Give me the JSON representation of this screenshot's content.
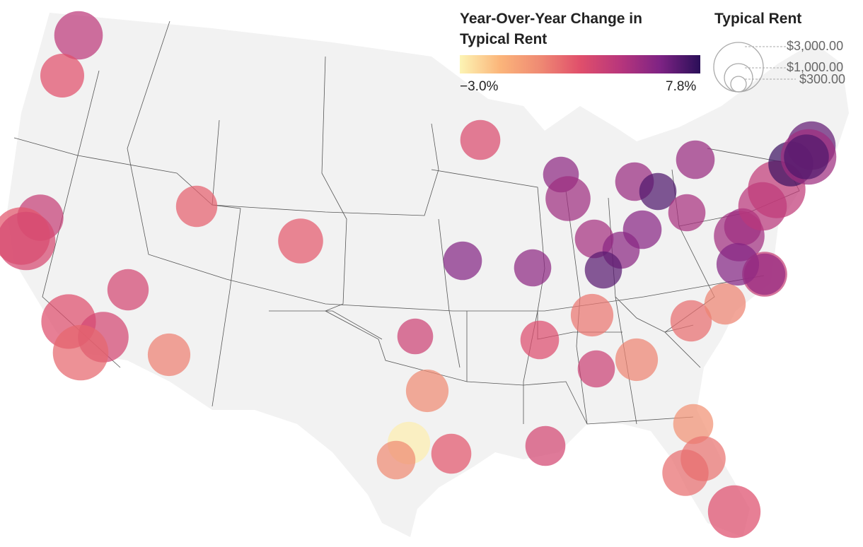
{
  "legend": {
    "color_title_line1": "Year-Over-Year Change in",
    "color_title_line2": "Typical Rent",
    "color_min_label": "−3.0%",
    "color_max_label": "7.8%",
    "color_min": -3.0,
    "color_max": 7.8,
    "color_stops": [
      "#fcf4b4",
      "#fbb57a",
      "#ef8a73",
      "#e04f6b",
      "#b8367c",
      "#7e2384",
      "#2a0f58"
    ],
    "size_title": "Typical Rent",
    "size_labels": [
      "$3,000.00",
      "$1,000.00",
      "$300.00"
    ],
    "size_values": [
      3000,
      1000,
      300
    ]
  },
  "colors": {
    "land": "#f2f2f2",
    "border": "#555555",
    "bubble_opacity": 0.72
  },
  "bubbles": [
    {
      "name": "seattle",
      "change": 4.0,
      "rent": 2200
    },
    {
      "name": "portland",
      "change": 2.4,
      "rent": 1800
    },
    {
      "name": "sacramento",
      "change": 3.6,
      "rent": 2000
    },
    {
      "name": "san-francisco",
      "change": 2.2,
      "rent": 3100
    },
    {
      "name": "san-jose",
      "change": 2.9,
      "rent": 3200
    },
    {
      "name": "fresno",
      "change": 3.0,
      "rent": 1600
    },
    {
      "name": "los-angeles",
      "change": 2.5,
      "rent": 2800
    },
    {
      "name": "riverside",
      "change": 3.0,
      "rent": 2400
    },
    {
      "name": "san-diego",
      "change": 1.7,
      "rent": 2900
    },
    {
      "name": "phoenix",
      "change": 0.9,
      "rent": 1700
    },
    {
      "name": "salt-lake-city",
      "change": 1.9,
      "rent": 1600
    },
    {
      "name": "denver",
      "change": 2.1,
      "rent": 1900
    },
    {
      "name": "minneapolis",
      "change": 2.7,
      "rent": 1500
    },
    {
      "name": "kansas-city",
      "change": 5.8,
      "rent": 1400
    },
    {
      "name": "oklahoma-city",
      "change": 3.3,
      "rent": 1200
    },
    {
      "name": "dallas",
      "change": 0.6,
      "rent": 1700
    },
    {
      "name": "austin",
      "change": -2.8,
      "rent": 1700
    },
    {
      "name": "san-antonio",
      "change": 0.6,
      "rent": 1400
    },
    {
      "name": "houston",
      "change": 2.2,
      "rent": 1500
    },
    {
      "name": "new-orleans",
      "change": 3.0,
      "rent": 1500
    },
    {
      "name": "memphis",
      "change": 2.6,
      "rent": 1400
    },
    {
      "name": "st-louis",
      "change": 5.5,
      "rent": 1300
    },
    {
      "name": "nashville",
      "change": 1.2,
      "rent": 1700
    },
    {
      "name": "birmingham",
      "change": 3.4,
      "rent": 1300
    },
    {
      "name": "atlanta",
      "change": 0.8,
      "rent": 1700
    },
    {
      "name": "milwaukee",
      "change": 5.5,
      "rent": 1200
    },
    {
      "name": "chicago",
      "change": 5.0,
      "rent": 1900
    },
    {
      "name": "indianapolis",
      "change": 4.8,
      "rent": 1400
    },
    {
      "name": "louisville",
      "change": 5.6,
      "rent": 1300
    },
    {
      "name": "cincinnati",
      "change": 5.7,
      "rent": 1400
    },
    {
      "name": "columbus",
      "change": 5.2,
      "rent": 1400
    },
    {
      "name": "detroit",
      "change": 5.2,
      "rent": 1400
    },
    {
      "name": "cleveland",
      "change": 7.0,
      "rent": 1300
    },
    {
      "name": "pittsburgh",
      "change": 4.7,
      "rent": 1300
    },
    {
      "name": "buffalo",
      "change": 5.3,
      "rent": 1300
    },
    {
      "name": "kentucky-metro",
      "change": 6.8,
      "rent": 1300
    },
    {
      "name": "charlotte",
      "change": 1.5,
      "rent": 1600
    },
    {
      "name": "raleigh",
      "change": 0.8,
      "rent": 1600
    },
    {
      "name": "jacksonville",
      "change": 0.3,
      "rent": 1500
    },
    {
      "name": "orlando",
      "change": 1.3,
      "rent": 1900
    },
    {
      "name": "tampa",
      "change": 1.5,
      "rent": 2000
    },
    {
      "name": "miami",
      "change": 2.5,
      "rent": 2600
    },
    {
      "name": "washington-dc",
      "change": 4.9,
      "rent": 2400
    },
    {
      "name": "baltimore",
      "change": 3.6,
      "rent": 1900
    },
    {
      "name": "richmond",
      "change": 5.8,
      "rent": 1700
    },
    {
      "name": "virginia-beach",
      "change": 5.3,
      "rent": 1600
    },
    {
      "name": "philadelphia",
      "change": 4.1,
      "rent": 2200
    },
    {
      "name": "new-york",
      "change": 3.8,
      "rent": 3100
    },
    {
      "name": "hartford",
      "change": 7.4,
      "rent": 1900
    },
    {
      "name": "providence",
      "change": 6.6,
      "rent": 2200
    },
    {
      "name": "boston",
      "change": 5.0,
      "rent": 2900
    },
    {
      "name": "boston-core",
      "change": 7.0,
      "rent": 1900
    }
  ]
}
